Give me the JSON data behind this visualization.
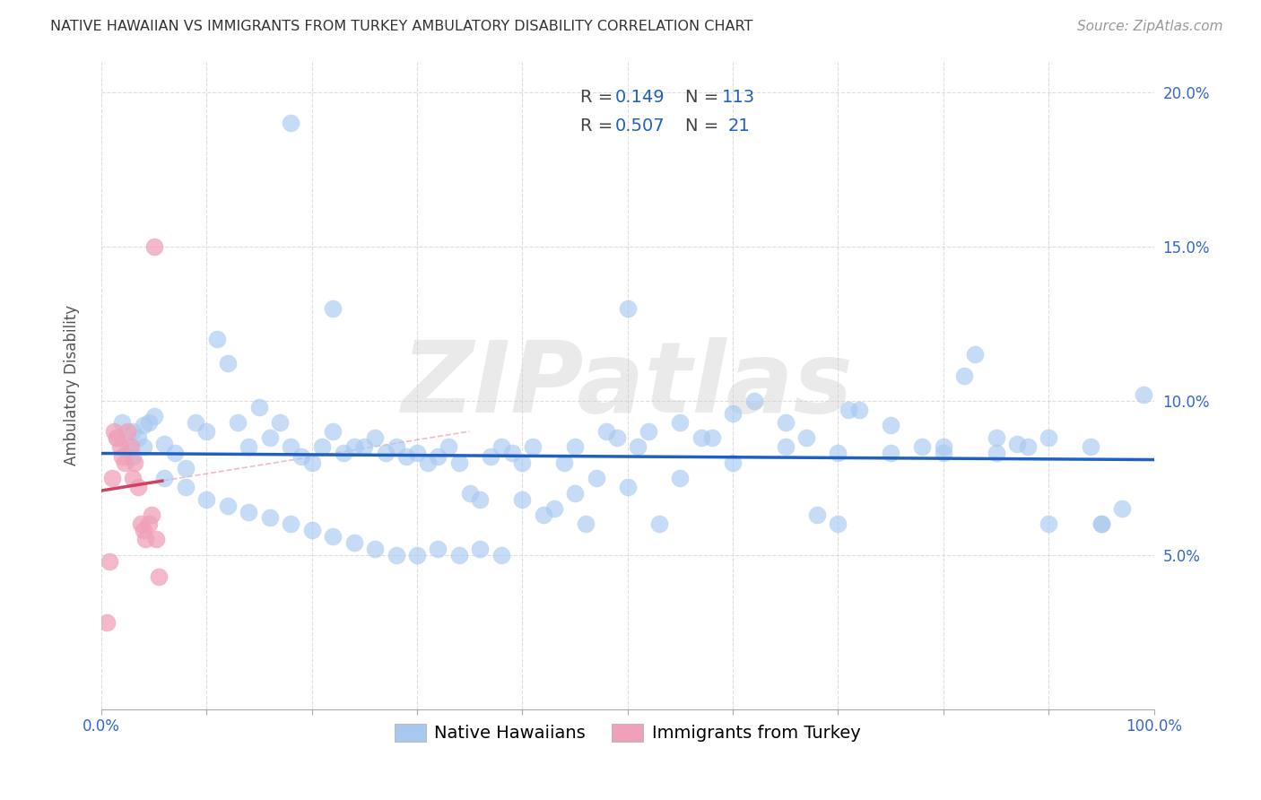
{
  "title": "NATIVE HAWAIIAN VS IMMIGRANTS FROM TURKEY AMBULATORY DISABILITY CORRELATION CHART",
  "source": "Source: ZipAtlas.com",
  "ylabel": "Ambulatory Disability",
  "xlim": [
    0,
    1.0
  ],
  "ylim": [
    0,
    0.21
  ],
  "x_tick_positions": [
    0.0,
    0.1,
    0.2,
    0.3,
    0.4,
    0.5,
    0.6,
    0.7,
    0.8,
    0.9,
    1.0
  ],
  "x_tick_labels": [
    "0.0%",
    "",
    "",
    "",
    "",
    "",
    "",
    "",
    "",
    "",
    "100.0%"
  ],
  "y_tick_positions": [
    0.05,
    0.1,
    0.15,
    0.2
  ],
  "y_tick_labels": [
    "5.0%",
    "10.0%",
    "15.0%",
    "20.0%"
  ],
  "legend_blue_r": "0.149",
  "legend_blue_n": "113",
  "legend_pink_r": "0.507",
  "legend_pink_n": "21",
  "blue_color": "#a8c8f0",
  "pink_color": "#f0a0b8",
  "blue_line_color": "#2060c0",
  "pink_line_color": "#d04060",
  "blue_scatter_x": [
    0.015,
    0.02,
    0.025,
    0.03,
    0.03,
    0.035,
    0.04,
    0.04,
    0.045,
    0.05,
    0.06,
    0.07,
    0.08,
    0.09,
    0.1,
    0.11,
    0.12,
    0.13,
    0.14,
    0.15,
    0.16,
    0.17,
    0.18,
    0.19,
    0.2,
    0.21,
    0.22,
    0.22,
    0.23,
    0.24,
    0.25,
    0.26,
    0.27,
    0.28,
    0.29,
    0.3,
    0.31,
    0.32,
    0.33,
    0.34,
    0.35,
    0.36,
    0.37,
    0.38,
    0.39,
    0.4,
    0.41,
    0.42,
    0.43,
    0.44,
    0.45,
    0.46,
    0.47,
    0.48,
    0.49,
    0.5,
    0.51,
    0.52,
    0.53,
    0.55,
    0.57,
    0.58,
    0.6,
    0.62,
    0.65,
    0.67,
    0.68,
    0.7,
    0.71,
    0.72,
    0.75,
    0.78,
    0.8,
    0.82,
    0.83,
    0.85,
    0.87,
    0.88,
    0.9,
    0.94,
    0.95,
    0.97,
    0.99,
    0.06,
    0.08,
    0.1,
    0.12,
    0.14,
    0.16,
    0.18,
    0.2,
    0.22,
    0.24,
    0.26,
    0.28,
    0.3,
    0.32,
    0.34,
    0.36,
    0.38,
    0.4,
    0.45,
    0.5,
    0.55,
    0.6,
    0.65,
    0.7,
    0.75,
    0.8,
    0.85,
    0.9,
    0.95,
    0.18
  ],
  "blue_scatter_y": [
    0.088,
    0.093,
    0.085,
    0.09,
    0.082,
    0.088,
    0.092,
    0.085,
    0.093,
    0.095,
    0.086,
    0.083,
    0.078,
    0.093,
    0.09,
    0.12,
    0.112,
    0.093,
    0.085,
    0.098,
    0.088,
    0.093,
    0.085,
    0.082,
    0.08,
    0.085,
    0.09,
    0.13,
    0.083,
    0.085,
    0.085,
    0.088,
    0.083,
    0.085,
    0.082,
    0.083,
    0.08,
    0.082,
    0.085,
    0.08,
    0.07,
    0.068,
    0.082,
    0.085,
    0.083,
    0.08,
    0.085,
    0.063,
    0.065,
    0.08,
    0.085,
    0.06,
    0.075,
    0.09,
    0.088,
    0.13,
    0.085,
    0.09,
    0.06,
    0.093,
    0.088,
    0.088,
    0.096,
    0.1,
    0.093,
    0.088,
    0.063,
    0.06,
    0.097,
    0.097,
    0.092,
    0.085,
    0.083,
    0.108,
    0.115,
    0.088,
    0.086,
    0.085,
    0.06,
    0.085,
    0.06,
    0.065,
    0.102,
    0.075,
    0.072,
    0.068,
    0.066,
    0.064,
    0.062,
    0.06,
    0.058,
    0.056,
    0.054,
    0.052,
    0.05,
    0.05,
    0.052,
    0.05,
    0.052,
    0.05,
    0.068,
    0.07,
    0.072,
    0.075,
    0.08,
    0.085,
    0.083,
    0.083,
    0.085,
    0.083,
    0.088,
    0.06,
    0.19
  ],
  "pink_scatter_x": [
    0.005,
    0.008,
    0.01,
    0.012,
    0.015,
    0.018,
    0.02,
    0.022,
    0.025,
    0.028,
    0.03,
    0.032,
    0.035,
    0.038,
    0.04,
    0.042,
    0.045,
    0.048,
    0.05,
    0.052,
    0.055
  ],
  "pink_scatter_y": [
    0.028,
    0.048,
    0.075,
    0.09,
    0.088,
    0.085,
    0.082,
    0.08,
    0.09,
    0.085,
    0.075,
    0.08,
    0.072,
    0.06,
    0.058,
    0.055,
    0.06,
    0.063,
    0.15,
    0.055,
    0.043
  ],
  "watermark": "ZIPatlas",
  "background_color": "#ffffff",
  "grid_color": "#dddddd",
  "title_fontsize": 11.5,
  "source_fontsize": 11,
  "axis_label_fontsize": 12,
  "tick_fontsize": 12,
  "legend_fontsize": 14
}
